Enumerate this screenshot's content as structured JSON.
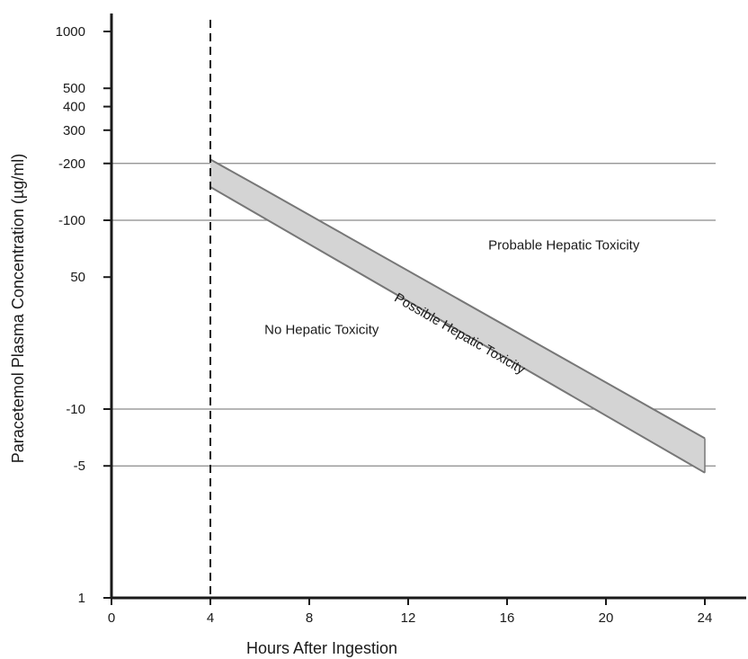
{
  "chart_data": {
    "type": "line",
    "title": "",
    "xlabel": "Hours After Ingestion",
    "ylabel": "Paracetemol Plasma Concentration (µg/ml)",
    "xlim": [
      0,
      24
    ],
    "ylim": [
      1,
      1000
    ],
    "y_scale": "log",
    "x_ticks": [
      0,
      4,
      8,
      12,
      16,
      20,
      24
    ],
    "y_ticks": [
      {
        "value": 1,
        "label": "1"
      },
      {
        "value": 5,
        "label": "-5"
      },
      {
        "value": 10,
        "label": "-10"
      },
      {
        "value": 50,
        "label": "50"
      },
      {
        "value": 100,
        "label": "-100"
      },
      {
        "value": 200,
        "label": "-200"
      },
      {
        "value": 300,
        "label": "300"
      },
      {
        "value": 400,
        "label": "400"
      },
      {
        "value": 500,
        "label": "500"
      },
      {
        "value": 1000,
        "label": "1000"
      }
    ],
    "reference_lines_y": [
      5,
      10,
      100,
      200
    ],
    "reference_line_x": 4,
    "band": {
      "upper": {
        "x": [
          4,
          6,
          24
        ],
        "y": [
          210,
          150,
          7
        ]
      },
      "lower": {
        "x": [
          4,
          24
        ],
        "y": [
          150,
          4.6
        ]
      }
    },
    "annotations": [
      {
        "text": "Probable Hepatic Toxicity",
        "x": 18.3,
        "y": 70
      },
      {
        "text": "No Hepatic Toxicity",
        "x": 8.5,
        "y": 25
      },
      {
        "text": "Possible Hepatic Toxicity",
        "x": 14,
        "y": 24,
        "rotated": true
      }
    ],
    "colors": {
      "band_fill": "#d4d4d4",
      "band_edge": "#777777",
      "grid": "#8a8a8a",
      "axis": "#1a1a1a"
    }
  }
}
